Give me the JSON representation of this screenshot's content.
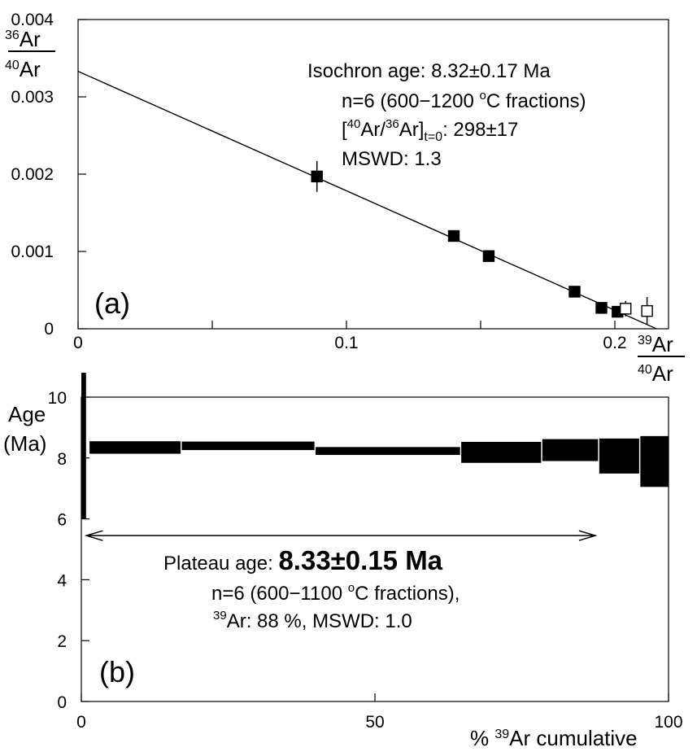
{
  "chart_data": [
    {
      "type": "scatter",
      "panel_label": "(a)",
      "xlabel": {
        "num": "39Ar",
        "num_sup": "39",
        "num_base": "Ar",
        "den_sup": "40",
        "den_base": "Ar"
      },
      "ylabel": {
        "num_sup": "36",
        "num_base": "Ar",
        "den_sup": "40",
        "den_base": "Ar"
      },
      "xlim": [
        0,
        0.22
      ],
      "ylim": [
        0,
        0.004
      ],
      "xticks": [
        0,
        0.05,
        0.1,
        0.15,
        0.2
      ],
      "xticklabels": [
        "0",
        "",
        "0.1",
        "",
        "0.2"
      ],
      "yticks": [
        0,
        0.001,
        0.002,
        0.003,
        0.004
      ],
      "yticklabels": [
        "0",
        "0.001",
        "0.002",
        "0.003",
        "0.004"
      ],
      "series": [
        {
          "marker": "filled-square",
          "points": [
            {
              "x": 0.089,
              "y": 0.00197,
              "yerr": 0.0002
            },
            {
              "x": 0.14,
              "y": 0.0012,
              "yerr": 3e-05
            },
            {
              "x": 0.153,
              "y": 0.00094,
              "yerr": 3e-05
            },
            {
              "x": 0.185,
              "y": 0.00048,
              "yerr": 3e-05
            },
            {
              "x": 0.195,
              "y": 0.00027,
              "yerr": 3e-05
            },
            {
              "x": 0.201,
              "y": 0.00022,
              "yerr": 6e-05
            }
          ]
        },
        {
          "marker": "open-square",
          "points": [
            {
              "x": 0.204,
              "y": 0.00026,
              "yerr": 0.0001
            },
            {
              "x": 0.212,
              "y": 0.00023,
              "yerr": 0.00018
            }
          ]
        }
      ],
      "isochron_line": {
        "intercept": 0.00333,
        "x_intercept": 0.2155
      },
      "annotations": {
        "age": "Isochron age: 8.32±0.17 Ma",
        "n": "n=6 (600−1200 ",
        "n_sup": "o",
        "n_tail": "C fractions)",
        "ratio_pre": "[",
        "ratio_sup1": "40",
        "ratio_mid": "Ar/",
        "ratio_sup2": "36",
        "ratio_base": "Ar]",
        "ratio_sub": "t=0",
        "ratio_value": ": 298±17",
        "mswd": "MSWD: 1.3"
      }
    },
    {
      "type": "bar",
      "subtype": "age-spectrum",
      "panel_label": "(b)",
      "xlabel": {
        "pre": "% ",
        "sup": "39",
        "base": "Ar cumulative"
      },
      "ylabel": [
        "Age",
        "(Ma)"
      ],
      "xlim": [
        0,
        100
      ],
      "ylim": [
        0,
        10
      ],
      "xticks": [
        0,
        50,
        100
      ],
      "xticklabels": [
        "0",
        "50",
        "100"
      ],
      "yticks": [
        0,
        2,
        4,
        6,
        8,
        10
      ],
      "yticklabels": [
        "0",
        "2",
        "4",
        "6",
        "8",
        "10"
      ],
      "steps": [
        {
          "x0": 0,
          "x1": 0.8,
          "y_low": 6.0,
          "y_high": 10.8
        },
        {
          "x0": 1.4,
          "x1": 16.9,
          "y_low": 8.14,
          "y_high": 8.55
        },
        {
          "x0": 17.1,
          "x1": 39.7,
          "y_low": 8.26,
          "y_high": 8.54
        },
        {
          "x0": 39.9,
          "x1": 64.5,
          "y_low": 8.1,
          "y_high": 8.36
        },
        {
          "x0": 64.7,
          "x1": 78.3,
          "y_low": 7.84,
          "y_high": 8.53
        },
        {
          "x0": 78.5,
          "x1": 88.0,
          "y_low": 7.9,
          "y_high": 8.62
        },
        {
          "x0": 88.2,
          "x1": 95.0,
          "y_low": 7.49,
          "y_high": 8.64
        },
        {
          "x0": 95.2,
          "x1": 100,
          "y_low": 7.05,
          "y_high": 8.72
        }
      ],
      "plateau_arrow": {
        "x0": 0.6,
        "x1": 87.8,
        "y": 5.45
      },
      "annotations": {
        "plateau_label": "Plateau age: ",
        "plateau_value": "8.33±0.15 Ma",
        "n": "n=6 (600−1100 ",
        "n_sup": "o",
        "n_tail": "C fractions),",
        "ar_sup": "39",
        "ar_text": "Ar: 88 %, MSWD: 1.0"
      }
    }
  ]
}
